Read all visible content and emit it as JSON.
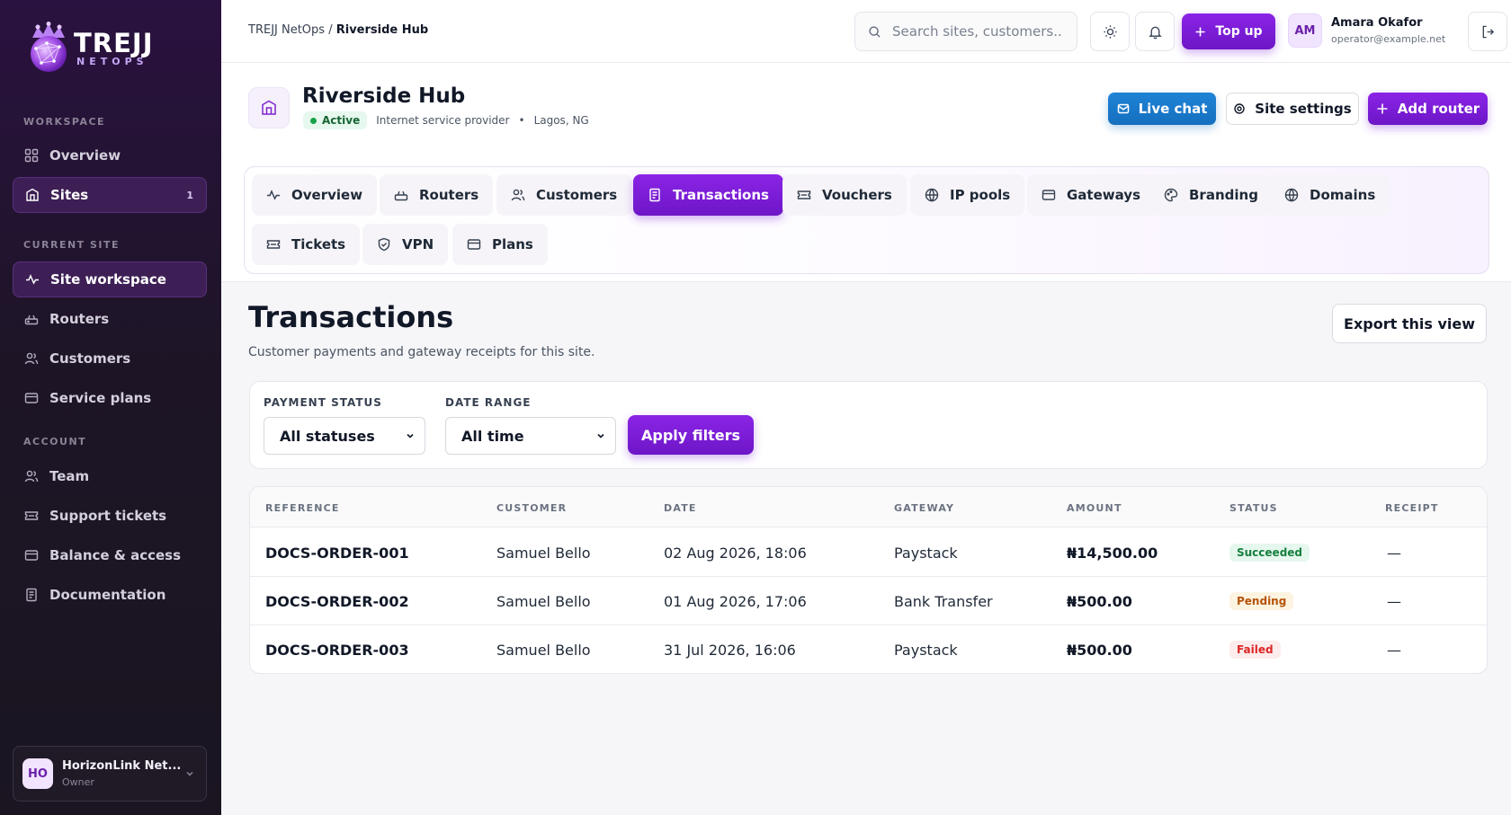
{
  "brand": {
    "name": "TREJJ",
    "sub": "NETOPS"
  },
  "sidebar": {
    "sections": [
      {
        "label": "WORKSPACE"
      },
      {
        "label": "CURRENT SITE"
      },
      {
        "label": "ACCOUNT"
      }
    ],
    "items": [
      {
        "label": "Overview",
        "icon": "grid-icon"
      },
      {
        "label": "Sites",
        "icon": "building-icon",
        "badge": "1",
        "active": true
      },
      {
        "label": "Site workspace",
        "icon": "activity-icon",
        "active": true
      },
      {
        "label": "Routers",
        "icon": "router-icon"
      },
      {
        "label": "Customers",
        "icon": "users-icon"
      },
      {
        "label": "Service plans",
        "icon": "card-icon"
      },
      {
        "label": "Team",
        "icon": "users-icon"
      },
      {
        "label": "Support tickets",
        "icon": "ticket-icon"
      },
      {
        "label": "Balance & access",
        "icon": "card-icon"
      },
      {
        "label": "Documentation",
        "icon": "document-icon"
      }
    ],
    "org": {
      "initials": "HO",
      "name": "HorizonLink Net...",
      "role": "Owner"
    }
  },
  "topbar": {
    "breadcrumb_root": "TREJJ NetOps",
    "breadcrumb_sep": " / ",
    "breadcrumb_current": "Riverside Hub",
    "search_placeholder": "Search sites, customers...",
    "topup_label": "Top up",
    "user": {
      "initials": "AM",
      "name": "Amara Okafor",
      "email": "operator@example.net"
    }
  },
  "site": {
    "name": "Riverside Hub",
    "status": "Active",
    "type": "Internet service provider",
    "bullet": "•",
    "location": "Lagos, NG",
    "buttons": {
      "live_chat": "Live chat",
      "settings": "Site settings",
      "add_router": "Add router"
    }
  },
  "tabs": [
    {
      "label": "Overview",
      "icon": "activity-icon"
    },
    {
      "label": "Routers",
      "icon": "router-icon"
    },
    {
      "label": "Customers",
      "icon": "users-icon"
    },
    {
      "label": "Transactions",
      "icon": "receipt-icon",
      "active": true
    },
    {
      "label": "Vouchers",
      "icon": "ticket-icon"
    },
    {
      "label": "IP pools",
      "icon": "globe-icon"
    },
    {
      "label": "Gateways",
      "icon": "card-icon"
    },
    {
      "label": "Branding",
      "icon": "palette-icon"
    },
    {
      "label": "Domains",
      "icon": "globe-icon"
    },
    {
      "label": "Tickets",
      "icon": "ticket-icon"
    },
    {
      "label": "VPN",
      "icon": "shield-icon"
    },
    {
      "label": "Plans",
      "icon": "card-icon"
    }
  ],
  "page": {
    "title": "Transactions",
    "subtitle": "Customer payments and gateway receipts for this site.",
    "export_label": "Export this view"
  },
  "filters": {
    "status_label": "PAYMENT STATUS",
    "status_value": "All statuses",
    "date_label": "DATE RANGE",
    "date_value": "All time",
    "apply_label": "Apply filters"
  },
  "table": {
    "columns": [
      "REFERENCE",
      "CUSTOMER",
      "DATE",
      "GATEWAY",
      "AMOUNT",
      "STATUS",
      "RECEIPT"
    ],
    "rows": [
      {
        "reference": "DOCS-ORDER-001",
        "customer": "Samuel Bello",
        "date": "02 Aug 2026, 18:06",
        "gateway": "Paystack",
        "amount": "₦14,500.00",
        "status": "Succeeded",
        "receipt": "—"
      },
      {
        "reference": "DOCS-ORDER-002",
        "customer": "Samuel Bello",
        "date": "01 Aug 2026, 17:06",
        "gateway": "Bank Transfer",
        "amount": "₦500.00",
        "status": "Pending",
        "receipt": "—"
      },
      {
        "reference": "DOCS-ORDER-003",
        "customer": "Samuel Bello",
        "date": "31 Jul 2026, 16:06",
        "gateway": "Paystack",
        "amount": "₦500.00",
        "status": "Failed",
        "receipt": "—"
      }
    ]
  },
  "colors": {
    "accent": "#7c22d6",
    "sidebar_bg": "#1d1526",
    "success": "#15803d",
    "warning": "#b45309",
    "danger": "#dc2626",
    "chat_blue": "#1a7ad0"
  }
}
